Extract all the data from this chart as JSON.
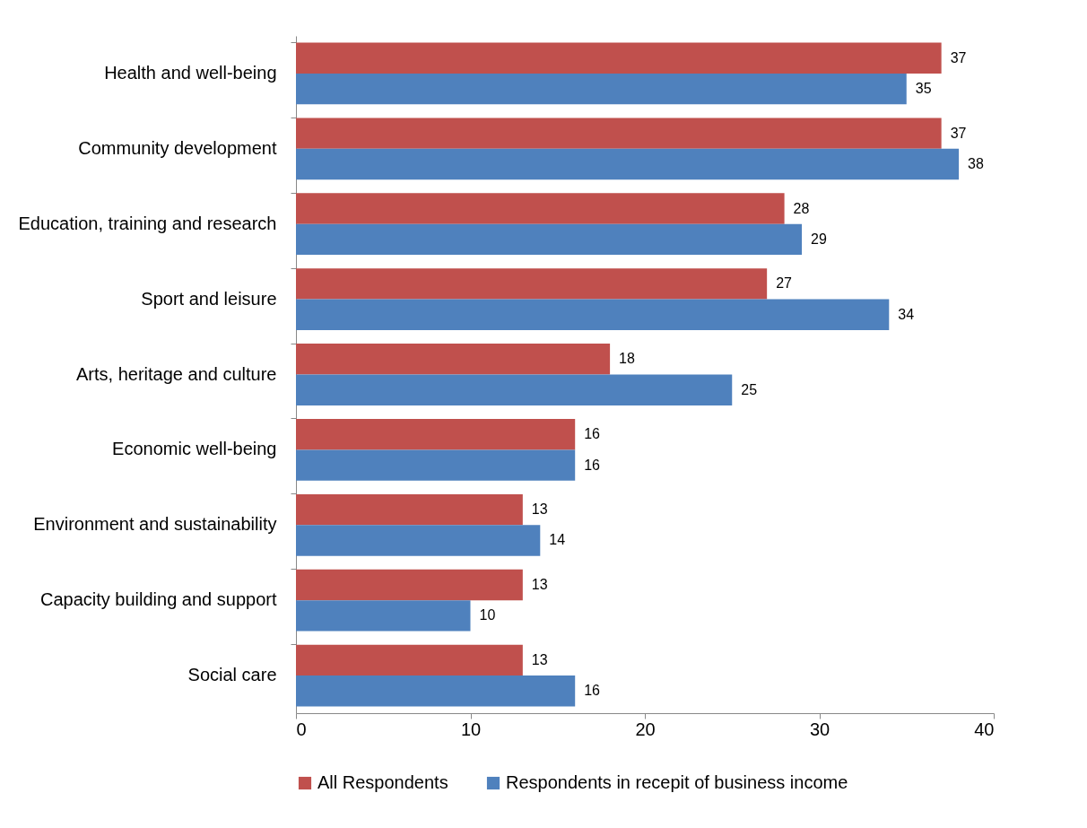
{
  "chart_data": {
    "type": "bar",
    "orientation": "horizontal",
    "categories": [
      "Health and well-being",
      "Community development",
      "Education, training and research",
      "Sport and leisure",
      "Arts, heritage and culture",
      "Economic well-being",
      "Environment and sustainability",
      "Capacity building and support",
      "Social care"
    ],
    "series": [
      {
        "name": "All Respondents",
        "color": "#c0504d",
        "values": [
          37,
          37,
          28,
          27,
          18,
          16,
          13,
          13,
          13
        ]
      },
      {
        "name": "Respondents in recepit of business income",
        "color": "#4f81bd",
        "values": [
          35,
          38,
          29,
          34,
          25,
          16,
          14,
          10,
          16
        ]
      }
    ],
    "xlim": [
      0,
      40
    ],
    "xticks": [
      0,
      10,
      20,
      30,
      40
    ],
    "grid": false,
    "legend": "bottom",
    "data_labels": true
  }
}
